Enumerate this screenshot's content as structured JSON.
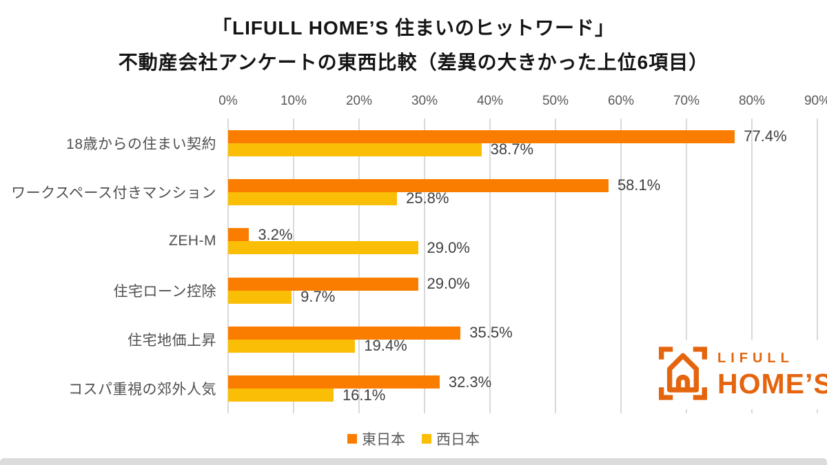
{
  "title": {
    "line1": "「LIFULL HOME’S 住まいのヒットワード」",
    "line2": "不動産会社アンケートの東西比較（差異の大きかった上位6項目）"
  },
  "chart_data": {
    "type": "bar",
    "orientation": "horizontal",
    "title": "「LIFULL HOME’S 住まいのヒットワード」不動産会社アンケートの東西比較（差異の大きかった上位6項目）",
    "categories": [
      "18歳からの住まい契約",
      "ワークスペース付きマンション",
      "ZEH-M",
      "住宅ローン控除",
      "住宅地価上昇",
      "コスパ重視の郊外人気"
    ],
    "series": [
      {
        "key": "east",
        "name": "東日本",
        "color": "#FA7D00",
        "values": [
          77.4,
          58.1,
          3.2,
          29.0,
          35.5,
          32.3
        ]
      },
      {
        "key": "west",
        "name": "西日本",
        "color": "#FBBE07",
        "values": [
          38.7,
          25.8,
          29.0,
          9.7,
          19.4,
          16.1
        ]
      }
    ],
    "data_labels": [
      "77.4%",
      "38.7%",
      "58.1%",
      "25.8%",
      "3.2%",
      "29.0%",
      "29.0%",
      "9.7%",
      "35.5%",
      "19.4%",
      "32.3%",
      "16.1%"
    ],
    "value_suffix": "%",
    "axis": {
      "position": "top",
      "min": 0,
      "max": 90,
      "ticks": [
        "0%",
        "10%",
        "20%",
        "30%",
        "40%",
        "50%",
        "60%",
        "70%",
        "80%",
        "90%"
      ]
    },
    "grid": true,
    "legend_position": "bottom"
  },
  "logo": {
    "line1": "LIFULL",
    "line2": "HOME’S",
    "color": "#E4650E"
  },
  "colors": {
    "east": "#FA7D00",
    "west": "#FBBE07",
    "gridline": "#d9d9d9",
    "logo_orange": "#E4650E"
  }
}
